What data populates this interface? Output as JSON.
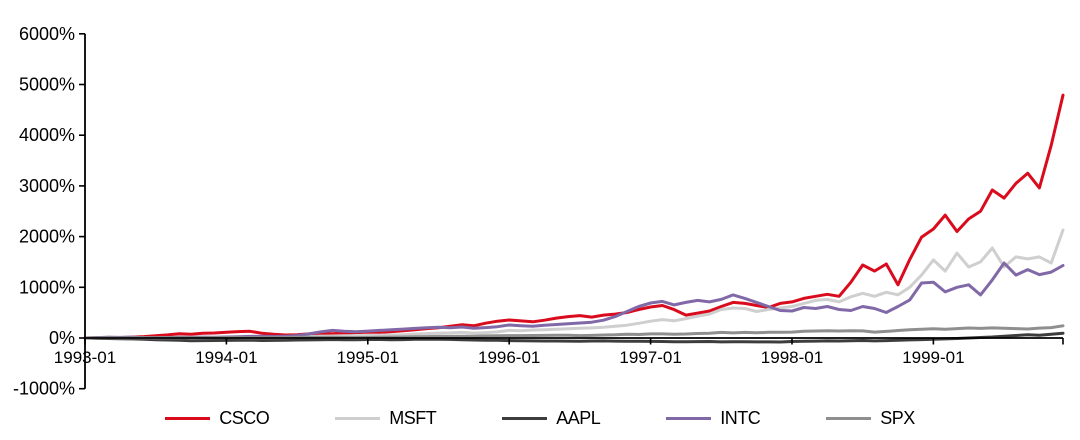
{
  "chart_data": {
    "type": "line",
    "title": "",
    "x_start": "1993-01",
    "x_end": "1999-12",
    "frequency": "monthly",
    "months": 84,
    "grid": false,
    "legend_position": "bottom",
    "y_axis": {
      "min": -1000,
      "max": 6000,
      "step": 1000,
      "unit": "%"
    },
    "y_ticks": [
      {
        "label": "6000%",
        "value": 6000
      },
      {
        "label": "5000%",
        "value": 5000
      },
      {
        "label": "4000%",
        "value": 4000
      },
      {
        "label": "3000%",
        "value": 3000
      },
      {
        "label": "2000%",
        "value": 2000
      },
      {
        "label": "1000%",
        "value": 1000
      },
      {
        "label": "0%",
        "value": 0
      },
      {
        "label": "-1000%",
        "value": -1000
      }
    ],
    "x_ticks": [
      {
        "label": "1993-01",
        "month": 0
      },
      {
        "label": "1994-01",
        "month": 12
      },
      {
        "label": "1995-01",
        "month": 24
      },
      {
        "label": "1996-01",
        "month": 36
      },
      {
        "label": "1997-01",
        "month": 48
      },
      {
        "label": "1998-01",
        "month": 60
      },
      {
        "label": "1999-01",
        "month": 72
      }
    ],
    "series": [
      {
        "name": "CSCO",
        "color": "#d90b1c",
        "values": [
          0,
          5,
          12,
          8,
          18,
          28,
          45,
          62,
          85,
          75,
          92,
          98,
          112,
          126,
          132,
          95,
          72,
          60,
          66,
          80,
          92,
          84,
          96,
          106,
          116,
          110,
          126,
          142,
          162,
          186,
          202,
          230,
          262,
          240,
          292,
          332,
          356,
          338,
          320,
          352,
          392,
          422,
          442,
          412,
          452,
          472,
          502,
          562,
          612,
          642,
          560,
          452,
          492,
          532,
          622,
          702,
          682,
          642,
          602,
          682,
          712,
          782,
          822,
          862,
          822,
          1100,
          1440,
          1320,
          1460,
          1050,
          1550,
          1990,
          2150,
          2425,
          2100,
          2350,
          2500,
          2920,
          2760,
          3050,
          3250,
          2960,
          3800,
          4790
        ]
      },
      {
        "name": "MSFT",
        "color": "#cfcfcf",
        "values": [
          0,
          2,
          -3,
          -8,
          0,
          4,
          -2,
          3,
          6,
          9,
          11,
          2,
          6,
          9,
          13,
          16,
          19,
          26,
          23,
          29,
          36,
          39,
          43,
          46,
          49,
          56,
          59,
          66,
          79,
          86,
          96,
          101,
          111,
          96,
          106,
          121,
          150,
          144,
          158,
          164,
          172,
          184,
          192,
          200,
          212,
          230,
          252,
          290,
          332,
          362,
          340,
          382,
          432,
          472,
          562,
          592,
          582,
          522,
          562,
          592,
          622,
          682,
          742,
          762,
          712,
          812,
          882,
          822,
          902,
          852,
          1002,
          1242,
          1540,
          1320,
          1675,
          1400,
          1500,
          1775,
          1400,
          1600,
          1560,
          1600,
          1480,
          2130
        ]
      },
      {
        "name": "AAPL",
        "color": "#3d3d3d",
        "values": [
          0,
          -7,
          -10,
          -13,
          -18,
          -25,
          -33,
          -40,
          -43,
          -55,
          -52,
          -50,
          -48,
          -45,
          -42,
          -50,
          -47,
          -44,
          -40,
          -38,
          -35,
          -30,
          -36,
          -34,
          -30,
          -28,
          -35,
          -32,
          -25,
          -21,
          -24,
          -28,
          -34,
          -40,
          -44,
          -46,
          -52,
          -55,
          -58,
          -60,
          -59,
          -62,
          -64,
          -60,
          -58,
          -62,
          -63,
          -65,
          -68,
          -70,
          -72,
          -74,
          -71,
          -69,
          -77,
          -75,
          -73,
          -76,
          -77,
          -78,
          -70,
          -66,
          -62,
          -58,
          -60,
          -55,
          -50,
          -57,
          -52,
          -45,
          -38,
          -31,
          -25,
          -18,
          -10,
          0,
          10,
          20,
          35,
          50,
          65,
          55,
          75,
          95
        ]
      },
      {
        "name": "INTC",
        "color": "#8169a8",
        "values": [
          0,
          8,
          15,
          12,
          18,
          8,
          5,
          10,
          15,
          12,
          18,
          15,
          20,
          26,
          32,
          36,
          30,
          34,
          48,
          80,
          120,
          150,
          132,
          122,
          136,
          150,
          162,
          176,
          190,
          202,
          212,
          202,
          216,
          192,
          206,
          222,
          256,
          242,
          232,
          252,
          266,
          282,
          296,
          312,
          352,
          422,
          522,
          622,
          690,
          722,
          652,
          702,
          742,
          712,
          762,
          850,
          782,
          702,
          622,
          542,
          532,
          602,
          582,
          622,
          562,
          542,
          622,
          582,
          502,
          622,
          752,
          1085,
          1100,
          910,
          1000,
          1050,
          850,
          1145,
          1480,
          1240,
          1350,
          1250,
          1300,
          1430
        ]
      },
      {
        "name": "SPX",
        "color": "#8f8f8f",
        "values": [
          0,
          1,
          3,
          1,
          3,
          4,
          4,
          7,
          6,
          8,
          7,
          8,
          10,
          8,
          4,
          5,
          6,
          8,
          11,
          15,
          12,
          14,
          10,
          8,
          10,
          14,
          17,
          20,
          24,
          27,
          31,
          31,
          36,
          36,
          41,
          43,
          47,
          48,
          49,
          51,
          54,
          55,
          48,
          51,
          59,
          63,
          74,
          70,
          80,
          81,
          74,
          78,
          88,
          95,
          110,
          100,
          110,
          103,
          112,
          115,
          117,
          132,
          139,
          142,
          138,
          143,
          140,
          117,
          130,
          148,
          162,
          174,
          184,
          174,
          186,
          197,
          190,
          200,
          192,
          185,
          177,
          195,
          205,
          240
        ]
      }
    ]
  }
}
